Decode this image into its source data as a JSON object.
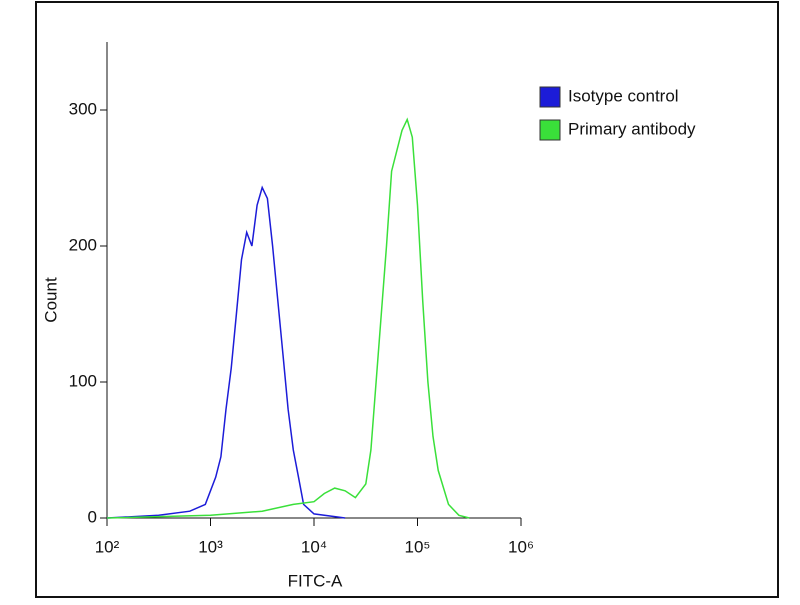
{
  "chart_data": {
    "type": "line",
    "xlabel": "FITC-A",
    "ylabel": "Count",
    "xscale": "log",
    "xlim": [
      100,
      1000000
    ],
    "xticks": [
      {
        "value": 100,
        "label": "10²"
      },
      {
        "value": 1000,
        "label": "10³"
      },
      {
        "value": 10000,
        "label": "10⁴"
      },
      {
        "value": 100000,
        "label": "10⁵"
      },
      {
        "value": 1000000,
        "label": "10⁶"
      }
    ],
    "ylim": [
      0,
      350
    ],
    "yticks": [
      0,
      100,
      200,
      300
    ],
    "legend": "upper right",
    "series": [
      {
        "name": "Isotype control",
        "color": "#1c1cd8",
        "x": [
          100,
          316,
          631,
          891,
          1122,
          1259,
          1413,
          1585,
          1778,
          1995,
          2239,
          2512,
          2818,
          3162,
          3548,
          3981,
          4467,
          5012,
          5623,
          6310,
          7079,
          7943,
          10000,
          19953
        ],
        "values": [
          0,
          2,
          5,
          10,
          30,
          45,
          80,
          110,
          150,
          190,
          210,
          200,
          230,
          243,
          235,
          200,
          160,
          120,
          80,
          50,
          30,
          10,
          3,
          0
        ]
      },
      {
        "name": "Primary antibody",
        "color": "#3ae03a",
        "x": [
          100,
          1000,
          3162,
          6310,
          10000,
          12589,
          15849,
          19953,
          25119,
          31623,
          35481,
          39811,
          44668,
          50119,
          56234,
          63096,
          70795,
          79433,
          89125,
          100000,
          112202,
          125893,
          141254,
          158489,
          199526,
          251189,
          316228
        ],
        "values": [
          0,
          2,
          5,
          10,
          12,
          18,
          22,
          20,
          15,
          25,
          50,
          100,
          150,
          200,
          255,
          270,
          285,
          293,
          280,
          230,
          160,
          100,
          60,
          35,
          10,
          2,
          0
        ]
      }
    ]
  }
}
